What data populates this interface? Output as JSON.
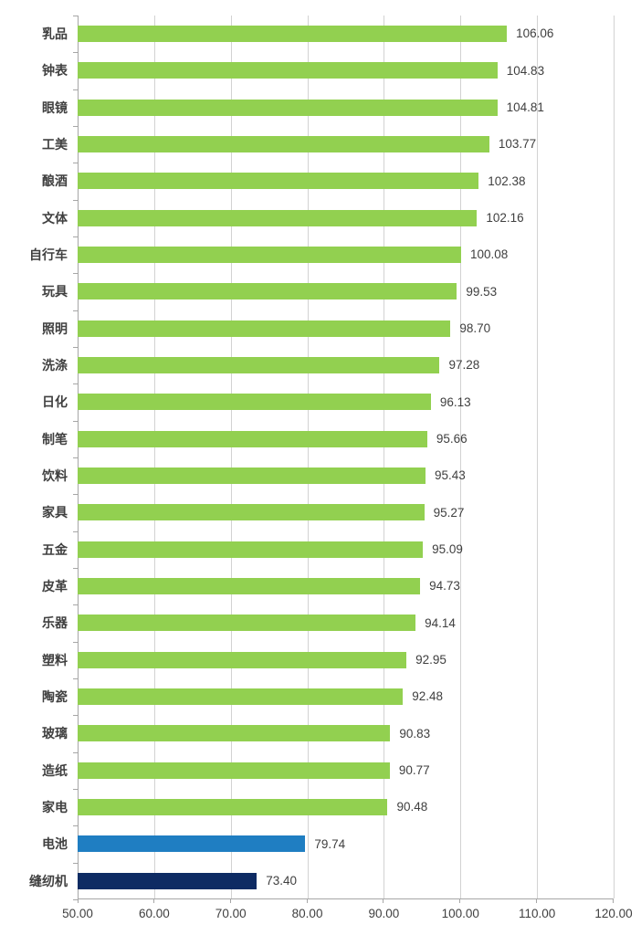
{
  "chart_data": {
    "type": "bar",
    "orientation": "horizontal",
    "title": "",
    "xlabel": "",
    "ylabel": "",
    "xlim": [
      50,
      120
    ],
    "x_tick_values": [
      50,
      60,
      70,
      80,
      90,
      100,
      110,
      120
    ],
    "x_tick_labels": [
      "50.00",
      "60.00",
      "70.00",
      "80.00",
      "90.00",
      "100.00",
      "110.00",
      "120.00"
    ],
    "grid": true,
    "legend": "none",
    "categories": [
      "乳品",
      "钟表",
      "眼镜",
      "工美",
      "酿酒",
      "文体",
      "自行车",
      "玩具",
      "照明",
      "洗涤",
      "日化",
      "制笔",
      "饮料",
      "家具",
      "五金",
      "皮革",
      "乐器",
      "塑料",
      "陶瓷",
      "玻璃",
      "造纸",
      "家电",
      "电池",
      "缝纫机"
    ],
    "values": [
      106.06,
      104.83,
      104.81,
      103.77,
      102.38,
      102.16,
      100.08,
      99.53,
      98.7,
      97.28,
      96.13,
      95.66,
      95.43,
      95.27,
      95.09,
      94.73,
      94.14,
      92.95,
      92.48,
      90.83,
      90.77,
      90.48,
      79.74,
      73.4
    ],
    "value_labels": [
      "106.06",
      "104.83",
      "104.81",
      "103.77",
      "102.38",
      "102.16",
      "100.08",
      "99.53",
      "98.70",
      "97.28",
      "96.13",
      "95.66",
      "95.43",
      "95.27",
      "95.09",
      "94.73",
      "94.14",
      "92.95",
      "92.48",
      "90.83",
      "90.77",
      "90.48",
      "79.74",
      "73.40"
    ],
    "bar_colors": [
      "#92d050",
      "#92d050",
      "#92d050",
      "#92d050",
      "#92d050",
      "#92d050",
      "#92d050",
      "#92d050",
      "#92d050",
      "#92d050",
      "#92d050",
      "#92d050",
      "#92d050",
      "#92d050",
      "#92d050",
      "#92d050",
      "#92d050",
      "#92d050",
      "#92d050",
      "#92d050",
      "#92d050",
      "#92d050",
      "#1f7ec2",
      "#0e2b63"
    ],
    "colors": {
      "default_bar": "#92d050",
      "battery_bar": "#1f7ec2",
      "sewing_machine_bar": "#0e2b63",
      "gridline": "#d2d2d2",
      "axis_line": "#a6a6a6",
      "label_text": "#404040"
    }
  }
}
